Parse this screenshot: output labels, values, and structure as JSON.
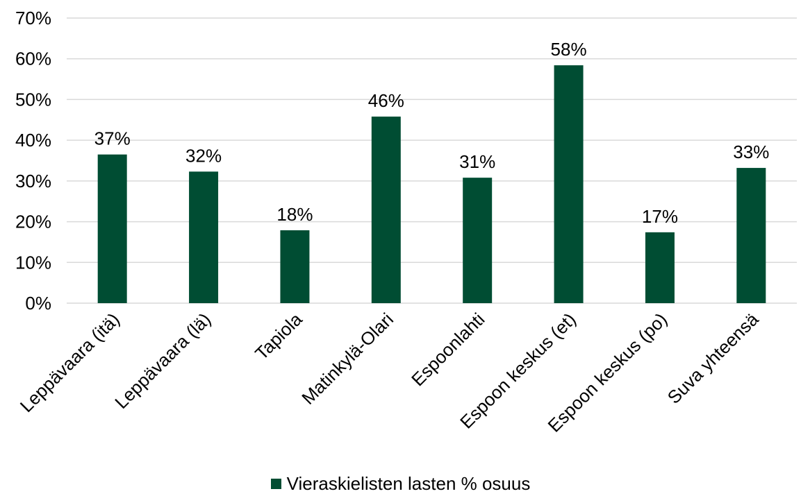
{
  "chart_data": {
    "type": "bar",
    "categories": [
      "Leppävaara (itä)",
      "Leppävaara (lä)",
      "Tapiola",
      "Matinkylä-Olari",
      "Espoonlahti",
      "Espoon keskus (et)",
      "Espoon keskus (po)",
      "Suva yhteensä"
    ],
    "series": [
      {
        "name": "Vieraskielisten lasten % osuus",
        "values": [
          36.5,
          32.3,
          17.9,
          45.8,
          30.8,
          58.4,
          17.4,
          33.2
        ],
        "labels": [
          "37%",
          "32%",
          "18%",
          "46%",
          "31%",
          "58%",
          "17%",
          "33%"
        ],
        "color": "#004d33"
      }
    ],
    "y_ticks": [
      "0%",
      "10%",
      "20%",
      "30%",
      "40%",
      "50%",
      "60%",
      "70%"
    ],
    "ylim": [
      0,
      70
    ],
    "grid": true,
    "legend_position": "bottom",
    "title": "",
    "xlabel": "",
    "ylabel": ""
  }
}
